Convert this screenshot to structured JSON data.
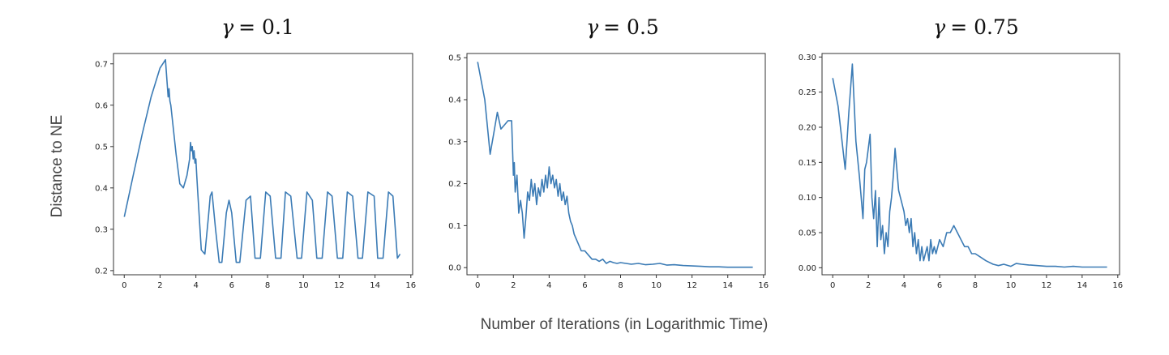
{
  "figure": {
    "ylabel": "Distance to NE",
    "xlabel": "Number of Iterations (in Logarithmic Time)"
  },
  "colors": {
    "line": "#3b7bb5"
  },
  "chart_data": [
    {
      "type": "line",
      "title_symbol": "γ",
      "title_value": "= 0.1",
      "xlim": [
        -0.6,
        16.1
      ],
      "ylim": [
        0.19,
        0.725
      ],
      "xticks": [
        0,
        2,
        4,
        6,
        8,
        10,
        12,
        14,
        16
      ],
      "yticks": [
        0.2,
        0.3,
        0.4,
        0.5,
        0.6,
        0.7
      ],
      "ytick_labels": [
        "0.2",
        "0.3",
        "0.4",
        "0.5",
        "0.6",
        "0.7"
      ],
      "x": [
        0.0,
        0.5,
        1.0,
        1.5,
        2.0,
        2.3,
        2.4,
        2.45,
        2.5,
        2.55,
        2.6,
        2.9,
        3.1,
        3.3,
        3.5,
        3.65,
        3.7,
        3.75,
        3.8,
        3.85,
        3.9,
        3.95,
        4.0,
        4.05,
        4.1,
        4.3,
        4.5,
        4.7,
        4.8,
        4.9,
        5.1,
        5.3,
        5.45,
        5.7,
        5.85,
        6.0,
        6.25,
        6.45,
        6.8,
        7.05,
        7.3,
        7.6,
        7.9,
        8.15,
        8.45,
        8.75,
        9.0,
        9.3,
        9.65,
        9.9,
        10.2,
        10.5,
        10.75,
        11.05,
        11.35,
        11.6,
        11.9,
        12.2,
        12.45,
        12.75,
        13.05,
        13.3,
        13.6,
        13.95,
        14.15,
        14.45,
        14.75,
        15.0,
        15.25,
        15.4
      ],
      "y": [
        0.33,
        0.43,
        0.53,
        0.62,
        0.69,
        0.71,
        0.65,
        0.62,
        0.64,
        0.61,
        0.6,
        0.48,
        0.41,
        0.4,
        0.43,
        0.47,
        0.51,
        0.49,
        0.5,
        0.47,
        0.49,
        0.46,
        0.47,
        0.43,
        0.39,
        0.25,
        0.24,
        0.33,
        0.38,
        0.39,
        0.3,
        0.22,
        0.22,
        0.34,
        0.37,
        0.34,
        0.22,
        0.22,
        0.37,
        0.38,
        0.23,
        0.23,
        0.39,
        0.38,
        0.23,
        0.23,
        0.39,
        0.38,
        0.23,
        0.23,
        0.39,
        0.37,
        0.23,
        0.23,
        0.39,
        0.38,
        0.23,
        0.23,
        0.39,
        0.38,
        0.23,
        0.23,
        0.39,
        0.38,
        0.23,
        0.23,
        0.39,
        0.38,
        0.23,
        0.24
      ]
    },
    {
      "type": "line",
      "title_symbol": "γ",
      "title_value": "= 0.5",
      "xlim": [
        -0.6,
        16.1
      ],
      "ylim": [
        -0.017,
        0.51
      ],
      "xticks": [
        0,
        2,
        4,
        6,
        8,
        10,
        12,
        14,
        16
      ],
      "yticks": [
        0.0,
        0.1,
        0.2,
        0.3,
        0.4,
        0.5
      ],
      "ytick_labels": [
        "0.0",
        "0.1",
        "0.2",
        "0.3",
        "0.4",
        "0.5"
      ],
      "x": [
        0.0,
        0.4,
        0.7,
        0.9,
        1.1,
        1.3,
        1.5,
        1.7,
        1.9,
        2.0,
        2.05,
        2.1,
        2.2,
        2.3,
        2.4,
        2.5,
        2.6,
        2.7,
        2.8,
        2.9,
        3.0,
        3.1,
        3.2,
        3.3,
        3.4,
        3.5,
        3.6,
        3.7,
        3.8,
        3.9,
        4.0,
        4.1,
        4.2,
        4.3,
        4.4,
        4.5,
        4.6,
        4.7,
        4.8,
        4.9,
        5.0,
        5.1,
        5.2,
        5.3,
        5.4,
        5.5,
        5.6,
        5.8,
        6.0,
        6.2,
        6.4,
        6.6,
        6.8,
        7.0,
        7.2,
        7.4,
        7.6,
        7.8,
        8.0,
        8.3,
        8.6,
        9.0,
        9.4,
        9.8,
        10.2,
        10.6,
        11.0,
        11.5,
        12.0,
        12.5,
        13.0,
        13.5,
        14.0,
        14.5,
        15.0,
        15.4
      ],
      "y": [
        0.49,
        0.4,
        0.27,
        0.32,
        0.37,
        0.33,
        0.34,
        0.35,
        0.35,
        0.22,
        0.25,
        0.18,
        0.22,
        0.13,
        0.16,
        0.13,
        0.07,
        0.12,
        0.18,
        0.16,
        0.21,
        0.17,
        0.2,
        0.15,
        0.19,
        0.17,
        0.21,
        0.18,
        0.22,
        0.19,
        0.24,
        0.2,
        0.22,
        0.19,
        0.21,
        0.17,
        0.2,
        0.16,
        0.18,
        0.15,
        0.17,
        0.13,
        0.11,
        0.1,
        0.08,
        0.07,
        0.06,
        0.04,
        0.04,
        0.03,
        0.02,
        0.02,
        0.015,
        0.02,
        0.01,
        0.015,
        0.012,
        0.01,
        0.012,
        0.01,
        0.008,
        0.01,
        0.007,
        0.008,
        0.01,
        0.006,
        0.007,
        0.005,
        0.004,
        0.003,
        0.002,
        0.002,
        0.001,
        0.001,
        0.001,
        0.001
      ]
    },
    {
      "type": "line",
      "title_symbol": "γ",
      "title_value": "= 0.75",
      "xlim": [
        -0.6,
        16.1
      ],
      "ylim": [
        -0.01,
        0.305
      ],
      "xticks": [
        0,
        2,
        4,
        6,
        8,
        10,
        12,
        14,
        16
      ],
      "yticks": [
        0.0,
        0.05,
        0.1,
        0.15,
        0.2,
        0.25,
        0.3
      ],
      "ytick_labels": [
        "0.00",
        "0.05",
        "0.10",
        "0.15",
        "0.20",
        "0.25",
        "0.30"
      ],
      "x": [
        0.0,
        0.3,
        0.7,
        0.9,
        1.1,
        1.3,
        1.5,
        1.7,
        1.8,
        1.9,
        2.0,
        2.1,
        2.2,
        2.3,
        2.4,
        2.5,
        2.6,
        2.7,
        2.8,
        2.9,
        3.0,
        3.1,
        3.2,
        3.3,
        3.4,
        3.5,
        3.6,
        3.7,
        3.8,
        3.9,
        4.0,
        4.1,
        4.2,
        4.3,
        4.4,
        4.5,
        4.6,
        4.7,
        4.8,
        4.9,
        5.0,
        5.1,
        5.2,
        5.3,
        5.4,
        5.5,
        5.6,
        5.7,
        5.8,
        5.9,
        6.0,
        6.2,
        6.4,
        6.6,
        6.8,
        7.0,
        7.2,
        7.4,
        7.6,
        7.8,
        8.0,
        8.3,
        8.6,
        9.0,
        9.3,
        9.6,
        10.0,
        10.3,
        10.6,
        11.0,
        11.5,
        12.0,
        12.5,
        13.0,
        13.5,
        14.0,
        14.5,
        15.0,
        15.4
      ],
      "y": [
        0.27,
        0.23,
        0.14,
        0.22,
        0.29,
        0.18,
        0.13,
        0.07,
        0.14,
        0.15,
        0.17,
        0.19,
        0.1,
        0.07,
        0.11,
        0.03,
        0.1,
        0.04,
        0.06,
        0.02,
        0.05,
        0.03,
        0.08,
        0.1,
        0.13,
        0.17,
        0.14,
        0.11,
        0.1,
        0.09,
        0.08,
        0.06,
        0.07,
        0.05,
        0.07,
        0.03,
        0.05,
        0.02,
        0.04,
        0.01,
        0.03,
        0.01,
        0.02,
        0.03,
        0.01,
        0.04,
        0.02,
        0.03,
        0.02,
        0.03,
        0.04,
        0.03,
        0.05,
        0.05,
        0.06,
        0.05,
        0.04,
        0.03,
        0.03,
        0.02,
        0.02,
        0.015,
        0.01,
        0.005,
        0.003,
        0.005,
        0.002,
        0.006,
        0.005,
        0.004,
        0.003,
        0.002,
        0.002,
        0.001,
        0.002,
        0.001,
        0.001,
        0.001,
        0.001
      ]
    }
  ]
}
